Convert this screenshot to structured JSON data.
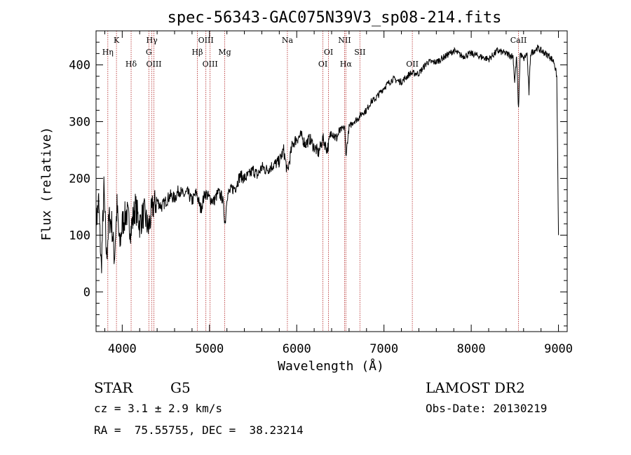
{
  "chart_data": {
    "type": "line",
    "title": "spec-56343-GAC075N39V3_sp08-214.fits",
    "xlabel": "Wavelength (Å)",
    "ylabel": "Flux (relative)",
    "xlim": [
      3700,
      9100
    ],
    "ylim": [
      -70,
      460
    ],
    "xticks": [
      4000,
      5000,
      6000,
      7000,
      8000,
      9000
    ],
    "xtick_labels": [
      "4000",
      "5000",
      "6000",
      "7000",
      "8000",
      "9000"
    ],
    "yticks": [
      0,
      100,
      200,
      300,
      400
    ],
    "ytick_labels": [
      "0",
      "100",
      "200",
      "300",
      "400"
    ],
    "series": [
      {
        "x": [
          3700,
          3730,
          3760,
          3790,
          3820,
          3850,
          3880,
          3910,
          3940,
          3970,
          4000,
          4050,
          4100,
          4150,
          4200,
          4250,
          4300,
          4350,
          4400,
          4450,
          4500,
          4550,
          4600,
          4650,
          4700,
          4750,
          4800,
          4850,
          4900,
          4950,
          5000,
          5050,
          5100,
          5150,
          5180,
          5200,
          5250,
          5300,
          5350,
          5400,
          5450,
          5500,
          5550,
          5600,
          5650,
          5700,
          5750,
          5800,
          5850,
          5893,
          5950,
          6000,
          6050,
          6100,
          6150,
          6200,
          6250,
          6300,
          6350,
          6400,
          6450,
          6500,
          6550,
          6563,
          6600,
          6650,
          6700,
          6750,
          6800,
          6850,
          6900,
          6950,
          7000,
          7100,
          7200,
          7300,
          7400,
          7500,
          7600,
          7700,
          7800,
          7900,
          8000,
          8100,
          8200,
          8300,
          8400,
          8480,
          8498,
          8520,
          8542,
          8560,
          8600,
          8640,
          8662,
          8680,
          8720,
          8760,
          8800,
          8850,
          8900,
          8950,
          8980,
          9000
        ],
        "y": [
          120,
          160,
          40,
          180,
          60,
          130,
          120,
          60,
          150,
          80,
          120,
          140,
          110,
          150,
          120,
          140,
          110,
          150,
          160,
          150,
          160,
          170,
          165,
          180,
          170,
          175,
          160,
          175,
          145,
          175,
          165,
          160,
          175,
          165,
          120,
          170,
          180,
          185,
          205,
          200,
          205,
          215,
          205,
          220,
          215,
          220,
          225,
          230,
          250,
          210,
          260,
          270,
          275,
          260,
          270,
          255,
          245,
          270,
          250,
          285,
          270,
          285,
          290,
          240,
          290,
          300,
          305,
          315,
          320,
          335,
          340,
          350,
          360,
          375,
          370,
          385,
          385,
          405,
          405,
          415,
          425,
          415,
          420,
          415,
          410,
          425,
          420,
          415,
          370,
          415,
          320,
          420,
          410,
          420,
          350,
          420,
          425,
          430,
          425,
          420,
          415,
          405,
          380,
          100
        ]
      }
    ],
    "spectral_lines": [
      {
        "label": "Hη",
        "x": 3835,
        "row": 2
      },
      {
        "label": "K",
        "x": 3934,
        "row": 1
      },
      {
        "label": "Hδ",
        "x": 4102,
        "row": 3
      },
      {
        "label": "Hγ",
        "x": 4340,
        "row": 1
      },
      {
        "label": "G",
        "x": 4305,
        "row": 2
      },
      {
        "label": "OIII",
        "x": 4363,
        "row": 3
      },
      {
        "label": "Hβ",
        "x": 4861,
        "row": 2
      },
      {
        "label": "OIII",
        "x": 4959,
        "row": 1
      },
      {
        "label": "OIII",
        "x": 5007,
        "row": 3
      },
      {
        "label": "Mg",
        "x": 5175,
        "row": 2
      },
      {
        "label": "Na",
        "x": 5893,
        "row": 1
      },
      {
        "label": "OI",
        "x": 6300,
        "row": 3
      },
      {
        "label": "OI",
        "x": 6364,
        "row": 2
      },
      {
        "label": "NII",
        "x": 6548,
        "row": 1
      },
      {
        "label": "Hα",
        "x": 6563,
        "row": 3
      },
      {
        "label": "SII",
        "x": 6724,
        "row": 2
      },
      {
        "label": "OII",
        "x": 7325,
        "row": 3
      },
      {
        "label": "CaII",
        "x": 8542,
        "row": 1
      }
    ],
    "grid": false,
    "legend": "none"
  },
  "info": {
    "object_type": "STAR",
    "subclass": "G5",
    "survey": "LAMOST DR2",
    "redshift": "cz = 3.1 ± 2.9 km/s",
    "obs_date": "Obs-Date: 20130219",
    "coords": "RA =  75.55755, DEC =  38.23214"
  },
  "colors": {
    "spectrum": "#000000",
    "line_markers": "#b22222"
  }
}
